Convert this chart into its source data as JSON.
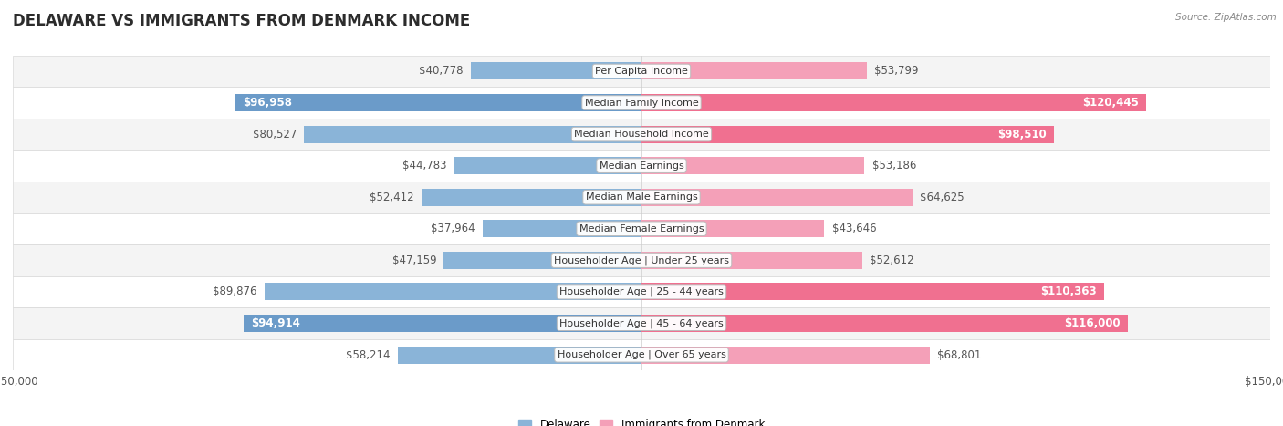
{
  "title": "DELAWARE VS IMMIGRANTS FROM DENMARK INCOME",
  "source": "Source: ZipAtlas.com",
  "categories": [
    "Per Capita Income",
    "Median Family Income",
    "Median Household Income",
    "Median Earnings",
    "Median Male Earnings",
    "Median Female Earnings",
    "Householder Age | Under 25 years",
    "Householder Age | 25 - 44 years",
    "Householder Age | 45 - 64 years",
    "Householder Age | Over 65 years"
  ],
  "delaware_values": [
    40778,
    96958,
    80527,
    44783,
    52412,
    37964,
    47159,
    89876,
    94914,
    58214
  ],
  "denmark_values": [
    53799,
    120445,
    98510,
    53186,
    64625,
    43646,
    52612,
    110363,
    116000,
    68801
  ],
  "delaware_labels": [
    "$40,778",
    "$96,958",
    "$80,527",
    "$44,783",
    "$52,412",
    "$37,964",
    "$47,159",
    "$89,876",
    "$94,914",
    "$58,214"
  ],
  "denmark_labels": [
    "$53,799",
    "$120,445",
    "$98,510",
    "$53,186",
    "$64,625",
    "$43,646",
    "$52,612",
    "$110,363",
    "$116,000",
    "$68,801"
  ],
  "delaware_color": "#8ab4d8",
  "denmark_color": "#f4a0b8",
  "delaware_bold_color": "#6b9bc9",
  "denmark_bold_color": "#f07090",
  "max_value": 150000,
  "bar_height": 0.55,
  "legend_delaware": "Delaware",
  "legend_denmark": "Immigrants from Denmark",
  "title_fontsize": 12,
  "label_fontsize": 8.5,
  "category_fontsize": 8.0,
  "axis_fontsize": 8.5,
  "bold_del_indices": [
    1,
    8
  ],
  "bold_den_indices": [
    1,
    2,
    7,
    8
  ]
}
